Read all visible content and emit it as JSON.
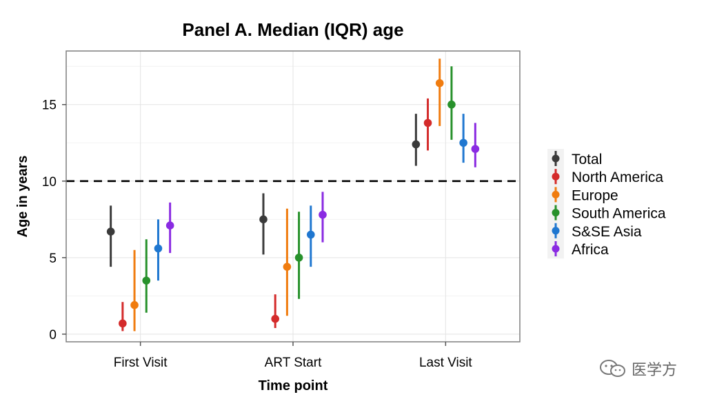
{
  "chart_data": {
    "type": "scatter",
    "subtype": "point-range (median with IQR bars)",
    "title": "Panel A. Median (IQR) age",
    "xlabel": "Time point",
    "ylabel": "Age in years",
    "categories": [
      "First Visit",
      "ART Start",
      "Last Visit"
    ],
    "ylim": [
      -0.5,
      18.5
    ],
    "yticks": [
      0,
      5,
      10,
      15
    ],
    "reference_line": {
      "y": 10,
      "style": "dashed"
    },
    "grid": true,
    "legend_position": "right",
    "series": [
      {
        "name": "Total",
        "color": "#3a3a3a",
        "median": [
          6.7,
          7.5,
          12.4
        ],
        "q1": [
          4.4,
          5.2,
          11.0
        ],
        "q3": [
          8.4,
          9.2,
          14.4
        ]
      },
      {
        "name": "North America",
        "color": "#d42b2b",
        "median": [
          0.7,
          1.0,
          13.8
        ],
        "q1": [
          0.2,
          0.4,
          12.0
        ],
        "q3": [
          2.1,
          2.6,
          15.4
        ]
      },
      {
        "name": "Europe",
        "color": "#f07c0f",
        "median": [
          1.9,
          4.4,
          16.4
        ],
        "q1": [
          0.2,
          1.2,
          13.6
        ],
        "q3": [
          5.5,
          8.2,
          18.0
        ]
      },
      {
        "name": "South America",
        "color": "#27912b",
        "median": [
          3.5,
          5.0,
          15.0
        ],
        "q1": [
          1.4,
          2.3,
          12.7
        ],
        "q3": [
          6.2,
          8.0,
          17.5
        ]
      },
      {
        "name": "S&SE Asia",
        "color": "#1f77d0",
        "median": [
          5.6,
          6.5,
          12.5
        ],
        "q1": [
          3.5,
          4.4,
          11.2
        ],
        "q3": [
          7.5,
          8.4,
          14.4
        ]
      },
      {
        "name": "Africa",
        "color": "#8a2be2",
        "median": [
          7.1,
          7.8,
          12.1
        ],
        "q1": [
          5.3,
          6.0,
          10.9
        ],
        "q3": [
          8.6,
          9.3,
          13.8
        ]
      }
    ]
  },
  "watermark": {
    "text": "医学方",
    "icon": "wechat-icon"
  }
}
